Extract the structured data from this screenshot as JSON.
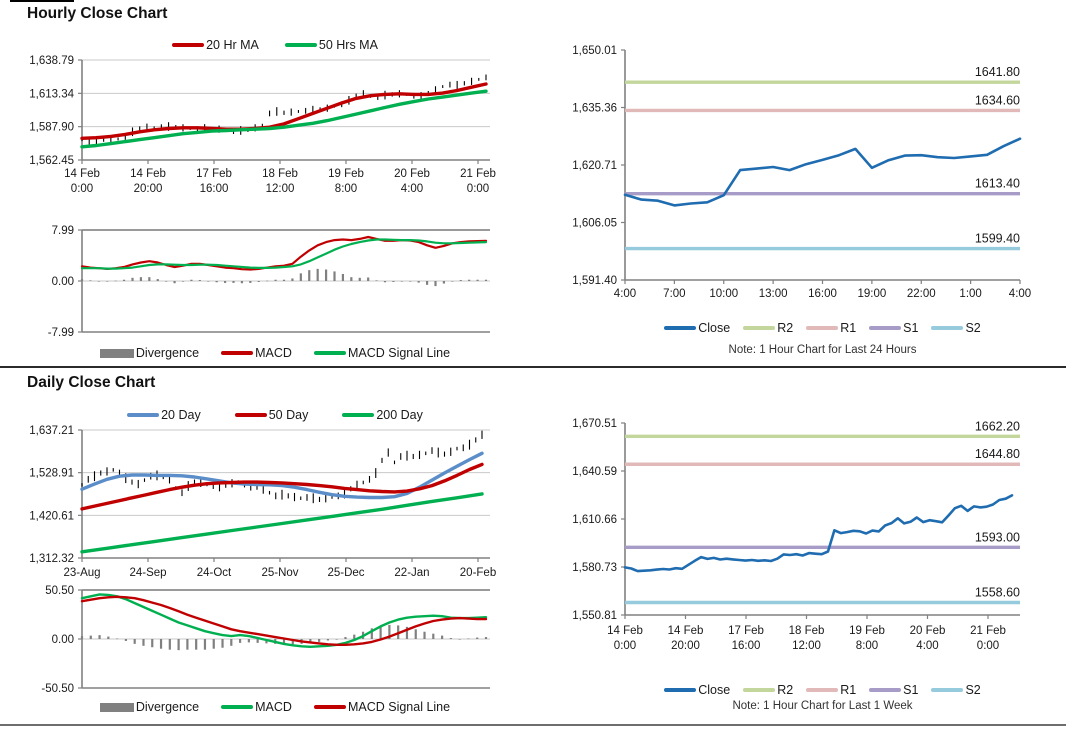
{
  "chart_data": [
    {
      "name": "hourly_price",
      "type": "line",
      "title": "Hourly Close Chart",
      "ylim": [
        1562.45,
        1638.79
      ],
      "yticks": [
        "1,638.79",
        "1,613.34",
        "1,587.90",
        "1,562.45"
      ],
      "xticklabels": [
        [
          "14 Feb",
          "0:00"
        ],
        [
          "14 Feb",
          "20:00"
        ],
        [
          "17 Feb",
          "16:00"
        ],
        [
          "18 Feb",
          "12:00"
        ],
        [
          "19 Feb",
          "8:00"
        ],
        [
          "20 Feb",
          "4:00"
        ],
        [
          "21 Feb",
          "0:00"
        ]
      ],
      "price": {
        "color": "#000000",
        "values": [
          1578,
          1576.5,
          1577.5,
          1578,
          1577,
          1578.5,
          1580,
          1584,
          1586.5,
          1587.5,
          1587,
          1587.5,
          1588,
          1587.5,
          1587,
          1586.5,
          1586,
          1586.5,
          1585.5,
          1586,
          1585.5,
          1584.5,
          1585,
          1585.5,
          1587,
          1589,
          1598,
          1599.5,
          1598.5,
          1599,
          1599.5,
          1600,
          1600.5,
          1601,
          1602,
          1603.5,
          1605,
          1608,
          1611.5,
          1613,
          1611,
          1610.5,
          1612,
          1612.5,
          1613,
          1612.5,
          1611.5,
          1611,
          1613.5,
          1616,
          1618.5,
          1620,
          1619.5,
          1621,
          1622.5,
          1624,
          1625.5
        ]
      },
      "series": [
        {
          "name": "20 Hr MA",
          "color": "#C00000",
          "values": [
            1579,
            1579.5,
            1580.5,
            1582,
            1584,
            1585.5,
            1586.5,
            1587,
            1587,
            1586.5,
            1586,
            1586,
            1586.5,
            1587.5,
            1590,
            1594,
            1598,
            1602,
            1606,
            1609.5,
            1611.5,
            1612.5,
            1613,
            1612.5,
            1612.5,
            1613.5,
            1615.5,
            1618,
            1620.5
          ]
        },
        {
          "name": "50 Hrs MA",
          "color": "#00B050",
          "values": [
            1572.5,
            1573.5,
            1575,
            1576.5,
            1578,
            1579.5,
            1581,
            1582.5,
            1583.5,
            1584.5,
            1585,
            1585.5,
            1586,
            1586.5,
            1587.5,
            1589,
            1590.5,
            1592.5,
            1595,
            1597.5,
            1600,
            1602.5,
            1605,
            1607,
            1609,
            1610.5,
            1612,
            1613.5,
            1615
          ]
        }
      ]
    },
    {
      "name": "hourly_macd",
      "type": "line",
      "ylim": [
        -7.99,
        7.99
      ],
      "yticks": [
        "7.99",
        "0.00",
        "-7.99"
      ],
      "bars": {
        "name": "Divergence",
        "color": "#808080",
        "values": [
          0.3,
          0.1,
          0,
          -0.05,
          0.05,
          0.2,
          0.5,
          0.6,
          0.6,
          0.3,
          -0.1,
          -0.35,
          -0.1,
          0.2,
          0.15,
          -0.05,
          -0.2,
          -0.3,
          -0.3,
          -0.35,
          -0.3,
          -0.15,
          0.05,
          0.2,
          0.2,
          0.4,
          1.2,
          1.7,
          1.9,
          1.8,
          1.5,
          1.1,
          0.6,
          0.5,
          0.55,
          0.1,
          -0.2,
          -0.15,
          0,
          -0.05,
          -0.25,
          -0.6,
          -0.8,
          -0.4,
          0,
          0.15,
          0.2,
          0.2,
          0.2
        ]
      },
      "series": [
        {
          "name": "MACD",
          "color": "#C00000",
          "values": [
            2.3,
            2.1,
            2,
            1.9,
            2,
            2.2,
            2.6,
            2.9,
            3.1,
            2.9,
            2.5,
            2.2,
            2.4,
            2.7,
            2.7,
            2.5,
            2.3,
            2.1,
            2,
            1.85,
            1.8,
            1.9,
            2.1,
            2.3,
            2.4,
            2.7,
            3.8,
            4.8,
            5.6,
            6.1,
            6.4,
            6.5,
            6.4,
            6.6,
            6.9,
            6.6,
            6.3,
            6.3,
            6.4,
            6.35,
            6.1,
            5.6,
            5.2,
            5.5,
            5.9,
            6.1,
            6.2,
            6.25,
            6.3
          ]
        },
        {
          "name": "MACD Signal Line",
          "color": "#00B050",
          "values": [
            2,
            2,
            2,
            1.95,
            1.95,
            2,
            2.1,
            2.3,
            2.5,
            2.6,
            2.6,
            2.55,
            2.5,
            2.5,
            2.55,
            2.55,
            2.5,
            2.4,
            2.3,
            2.2,
            2.1,
            2.05,
            2.05,
            2.1,
            2.2,
            2.3,
            2.6,
            3.1,
            3.7,
            4.3,
            4.9,
            5.4,
            5.8,
            6.1,
            6.35,
            6.5,
            6.5,
            6.45,
            6.4,
            6.4,
            6.35,
            6.2,
            6,
            5.9,
            5.9,
            5.95,
            6,
            6.05,
            6.1
          ]
        }
      ]
    },
    {
      "name": "hourly_close_support_resistance",
      "type": "line",
      "note": "Note: 1 Hour Chart for Last 24 Hours",
      "ylim": [
        1591.4,
        1650.01
      ],
      "yticks": [
        "1,650.01",
        "1,635.36",
        "1,620.71",
        "1,606.05",
        "1,591.40"
      ],
      "xticklabels": [
        "4:00",
        "7:00",
        "10:00",
        "13:00",
        "16:00",
        "19:00",
        "22:00",
        "1:00",
        "4:00"
      ],
      "series": [
        {
          "name": "Close",
          "color": "#1F6CB0",
          "values": [
            1613.1,
            1611.9,
            1611.6,
            1610.4,
            1610.9,
            1611.2,
            1613.0,
            1619.4,
            1619.8,
            1620.2,
            1619.4,
            1620.9,
            1622.0,
            1623.2,
            1624.8,
            1620.0,
            1621.9,
            1623.1,
            1623.2,
            1622.7,
            1622.5,
            1622.9,
            1623.3,
            1625.5,
            1627.4
          ]
        }
      ],
      "hlines": [
        {
          "name": "R2",
          "label": "1641.80",
          "value": 1641.8,
          "color": "#C3D69B"
        },
        {
          "name": "R1",
          "label": "1634.60",
          "value": 1634.6,
          "color": "#E0B9B8"
        },
        {
          "name": "S1",
          "label": "1613.40",
          "value": 1613.4,
          "color": "#A79CC8"
        },
        {
          "name": "S2",
          "label": "1599.40",
          "value": 1599.4,
          "color": "#95CBDD"
        }
      ]
    },
    {
      "name": "daily_price",
      "type": "line",
      "title": "Daily Close Chart",
      "ylim": [
        1312.32,
        1637.21
      ],
      "yticks": [
        "1,637.21",
        "1,528.91",
        "1,420.61",
        "1,312.32"
      ],
      "xticklabels": [
        "23-Aug",
        "24-Sep",
        "24-Oct",
        "25-Nov",
        "25-Dec",
        "22-Jan",
        "20-Feb"
      ],
      "price": {
        "color": "#000000",
        "values": [
          1498,
          1512,
          1520,
          1528,
          1532,
          1536,
          1528,
          1515,
          1505,
          1500,
          1510,
          1520,
          1522,
          1519,
          1512,
          1490,
          1478,
          1495,
          1505,
          1503,
          1499,
          1496,
          1494,
          1497,
          1502,
          1505,
          1500,
          1496,
          1492,
          1486,
          1478,
          1470,
          1473,
          1470,
          1467,
          1464,
          1466,
          1464,
          1461,
          1464,
          1467,
          1470,
          1476,
          1488,
          1498,
          1504,
          1512,
          1528,
          1560,
          1580,
          1555,
          1570,
          1572,
          1570,
          1574,
          1578,
          1585,
          1580,
          1576,
          1582,
          1590,
          1592,
          1600,
          1612,
          1625
        ]
      },
      "series": [
        {
          "name": "20 Day",
          "color": "#5B8EC9",
          "values": [
            1487,
            1500,
            1512,
            1520,
            1523,
            1523,
            1522,
            1522,
            1521,
            1518,
            1513,
            1508,
            1503,
            1500,
            1499,
            1498,
            1496,
            1492,
            1486,
            1479,
            1473,
            1469,
            1467,
            1466,
            1466,
            1468,
            1476,
            1492,
            1510,
            1528,
            1545,
            1562,
            1578
          ]
        },
        {
          "name": "50 Day",
          "color": "#C00000",
          "values": [
            1437,
            1444,
            1451,
            1458,
            1465,
            1472,
            1479,
            1486,
            1492,
            1497,
            1501,
            1503,
            1504,
            1505,
            1505,
            1504,
            1503,
            1501,
            1499,
            1496,
            1493,
            1489,
            1486,
            1483,
            1481,
            1480,
            1482,
            1488,
            1496,
            1508,
            1522,
            1537,
            1550
          ]
        },
        {
          "name": "200 Day",
          "color": "#00B050",
          "values": [
            1328,
            1337,
            1346,
            1355,
            1364,
            1373,
            1382,
            1391,
            1400,
            1409,
            1418,
            1427,
            1436,
            1446,
            1456,
            1465,
            1475
          ]
        }
      ]
    },
    {
      "name": "daily_macd",
      "type": "line",
      "ylim": [
        -50.5,
        50.5
      ],
      "yticks": [
        "50.50",
        "0.00",
        "-50.50"
      ],
      "bars": {
        "name": "Divergence",
        "color": "#808080",
        "values": [
          3,
          3.5,
          4,
          2.5,
          0.5,
          -2,
          -5,
          -7,
          -8.5,
          -10,
          -11,
          -11.5,
          -11,
          -11,
          -11,
          -10,
          -9,
          -7,
          -4,
          -3.5,
          -4,
          -4.5,
          -5,
          -5.5,
          -5.5,
          -5,
          -4.5,
          -3,
          -1.5,
          0,
          2,
          4.5,
          7.5,
          11,
          13.5,
          14.5,
          14,
          12.5,
          10,
          7.5,
          5.5,
          3.5,
          1,
          0,
          0.5,
          1.5,
          2
        ]
      },
      "series": [
        {
          "name": "MACD",
          "color": "#00B050",
          "values": [
            42,
            44,
            46,
            45.5,
            44,
            41,
            37,
            33,
            29,
            25,
            21,
            17,
            14,
            11,
            8,
            6,
            4,
            3,
            4,
            3,
            1,
            -1,
            -3,
            -5,
            -6.5,
            -7.5,
            -8,
            -7.5,
            -7,
            -6,
            -4,
            -1,
            3,
            8,
            13,
            17,
            20,
            22,
            23,
            23.5,
            24,
            23.5,
            22,
            21.5,
            21.5,
            22,
            22.5
          ]
        },
        {
          "name": "MACD Signal Line",
          "color": "#C00000",
          "values": [
            39,
            40.5,
            42,
            43,
            43.5,
            43,
            42,
            40,
            37.5,
            35,
            32,
            28.5,
            25,
            22,
            19,
            16,
            13,
            10,
            8,
            6.5,
            5,
            3.5,
            2,
            0.5,
            -1,
            -2.5,
            -3.5,
            -4.5,
            -5.5,
            -6,
            -6,
            -5.5,
            -4.5,
            -3,
            -0.5,
            2.5,
            6,
            9.5,
            13,
            16,
            18.5,
            20,
            21,
            21.5,
            21,
            20.5,
            20.5
          ]
        }
      ]
    },
    {
      "name": "weekly_close_support_resistance",
      "type": "line",
      "note": "Note: 1 Hour Chart for Last 1 Week",
      "ylim": [
        1550.81,
        1670.51
      ],
      "yticks": [
        "1,670.51",
        "1,640.59",
        "1,610.66",
        "1,580.73",
        "1,550.81"
      ],
      "xticklabels": [
        [
          "14 Feb",
          "0:00"
        ],
        [
          "14 Feb",
          "20:00"
        ],
        [
          "17 Feb",
          "16:00"
        ],
        [
          "18 Feb",
          "12:00"
        ],
        [
          "19 Feb",
          "8:00"
        ],
        [
          "20 Feb",
          "4:00"
        ],
        [
          "21 Feb",
          "0:00"
        ]
      ],
      "series": [
        {
          "name": "Close",
          "color": "#1F6CB0",
          "values": [
            1580.5,
            1579.8,
            1578.2,
            1578.4,
            1578.7,
            1579.1,
            1579.5,
            1579.2,
            1580.0,
            1579.6,
            1582.1,
            1584.6,
            1586.9,
            1585.8,
            1586.4,
            1585.4,
            1585.9,
            1585.5,
            1585.1,
            1584.7,
            1585.1,
            1584.6,
            1584.9,
            1584.5,
            1585.9,
            1588.6,
            1588.2,
            1588.7,
            1587.9,
            1589.4,
            1589.0,
            1588.7,
            1590.4,
            1603.6,
            1601.9,
            1602.5,
            1603.3,
            1603.0,
            1601.6,
            1603.4,
            1602.9,
            1606.6,
            1608.1,
            1611.1,
            1607.9,
            1608.9,
            1611.6,
            1608.7,
            1609.9,
            1609.3,
            1608.6,
            1612.9,
            1617.4,
            1618.9,
            1615.7,
            1618.5,
            1617.9,
            1618.3,
            1619.7,
            1622.5,
            1623.3,
            1625.4
          ]
        }
      ],
      "hlines": [
        {
          "name": "R2",
          "label": "1662.20",
          "value": 1662.2,
          "color": "#C3D69B"
        },
        {
          "name": "R1",
          "label": "1644.80",
          "value": 1644.8,
          "color": "#E0B9B8"
        },
        {
          "name": "S1",
          "label": "1593.00",
          "value": 1593.0,
          "color": "#A79CC8"
        },
        {
          "name": "S2",
          "label": "1558.60",
          "value": 1558.6,
          "color": "#95CBDD"
        }
      ]
    }
  ]
}
